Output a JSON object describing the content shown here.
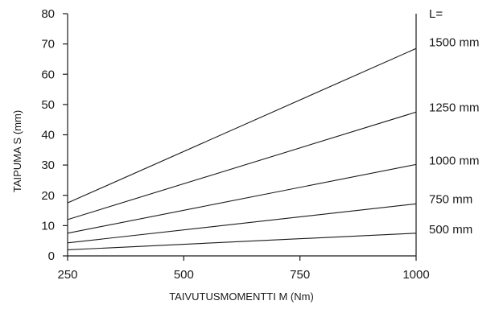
{
  "chart_data": {
    "type": "line",
    "xlabel": "TAIVUTUSMOMENTTI M (Nm)",
    "ylabel": "TAIPUMA S (mm)",
    "xlim": [
      250,
      1000
    ],
    "ylim": [
      0,
      80
    ],
    "x_ticks": [
      "250",
      "500",
      "750",
      "1000"
    ],
    "y_ticks": [
      "0",
      "10",
      "20",
      "30",
      "40",
      "50",
      "60",
      "70",
      "80"
    ],
    "legend_title": "L=",
    "grid": false,
    "x": [
      250,
      1000
    ],
    "series": [
      {
        "name": "500 mm",
        "values": [
          2,
          7.5
        ]
      },
      {
        "name": "750 mm",
        "values": [
          4.3,
          17.2
        ]
      },
      {
        "name": "1000 mm",
        "values": [
          7.5,
          30.2
        ]
      },
      {
        "name": "1250 mm",
        "values": [
          12,
          47.5
        ]
      },
      {
        "name": "1500 mm",
        "values": [
          17.5,
          68.5
        ]
      }
    ]
  }
}
